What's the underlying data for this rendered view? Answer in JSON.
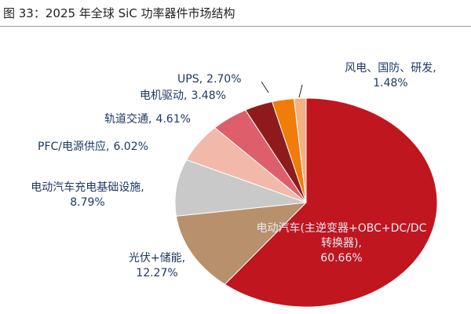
{
  "chart_data": {
    "type": "pie",
    "title": "图 33：2025 年全球 SiC 功率器件市场结构",
    "categories": [
      "电动汽车(主逆变器+OBC+DC/DC转换器),",
      "光伏+储能,",
      "电动汽车充电基础设施,",
      "PFC/电源供应,",
      "轨道交通,",
      "电机驱动,",
      "UPS,",
      "风电、国防、研发,"
    ],
    "values": [
      60.66,
      12.27,
      8.79,
      6.02,
      4.61,
      3.48,
      2.7,
      1.48
    ],
    "value_labels": [
      "60.66%",
      "12.27%",
      "8.79%",
      "6.02%",
      "4.61%",
      "3.48%",
      "2.70%",
      "1.48%"
    ],
    "colors": [
      "#c0161f",
      "#b8916c",
      "#c9c9c9",
      "#f2b9aa",
      "#de5f6b",
      "#8e1a1c",
      "#f07c0a",
      "#f4b183"
    ]
  }
}
